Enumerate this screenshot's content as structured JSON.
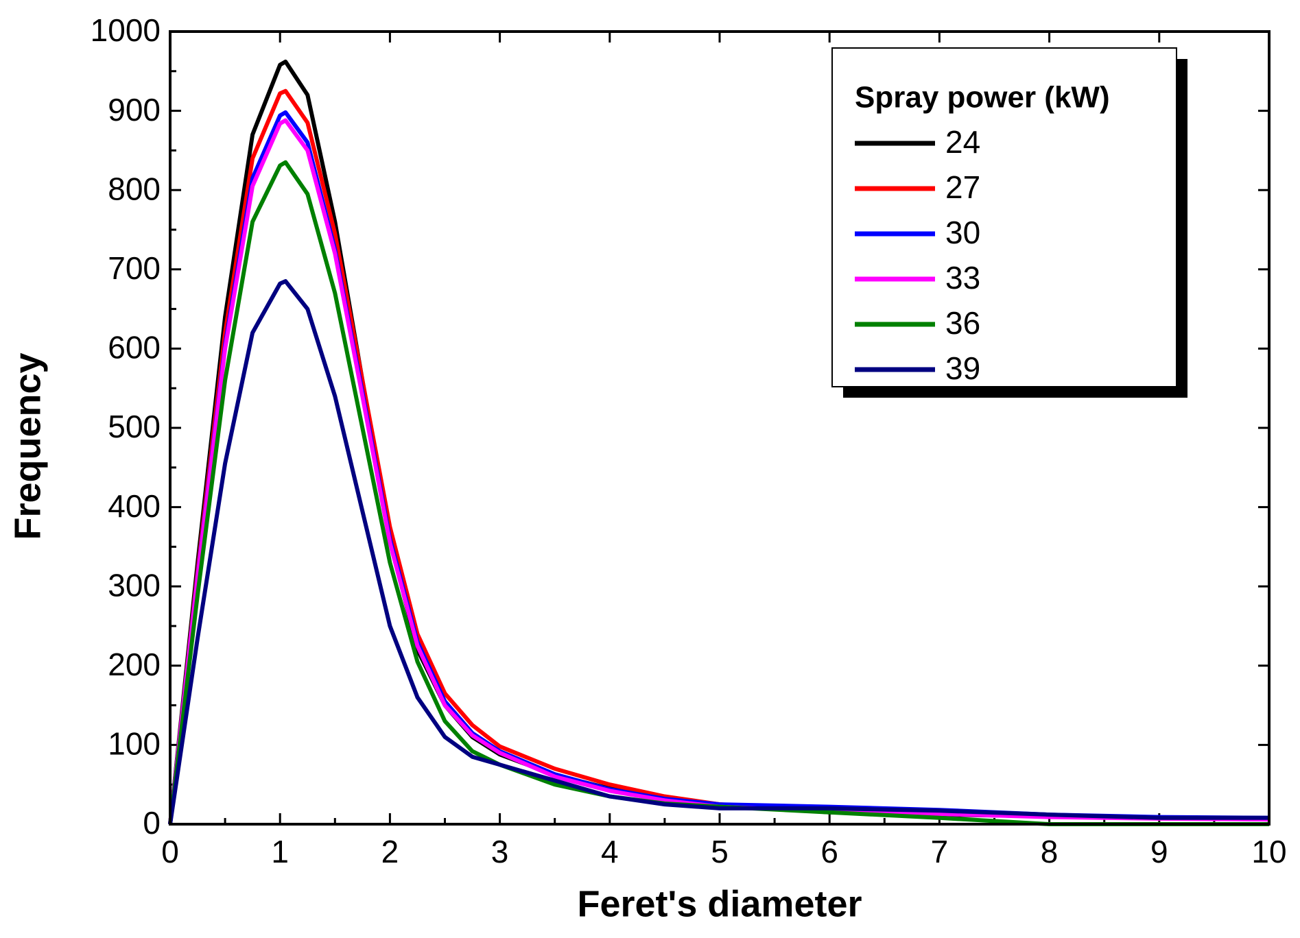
{
  "chart_data": {
    "type": "line",
    "xlabel": "Feret's diameter",
    "ylabel": "Frequency",
    "legend_title": "Spray power (kW)",
    "legend": "upper right",
    "x": [
      0,
      0.25,
      0.5,
      0.75,
      1,
      1.05,
      1.25,
      1.5,
      1.75,
      2,
      2.25,
      2.5,
      2.75,
      3,
      3.5,
      4,
      4.5,
      5,
      6,
      7,
      8,
      9,
      10
    ],
    "series": [
      {
        "name": "24",
        "color": "#000000",
        "values": [
          0,
          330,
          640,
          870,
          958,
          962,
          920,
          760,
          560,
          360,
          220,
          150,
          110,
          88,
          62,
          45,
          33,
          25,
          15,
          12,
          10,
          8,
          6
        ]
      },
      {
        "name": "27",
        "color": "#ff0000",
        "values": [
          0,
          320,
          620,
          840,
          922,
          925,
          885,
          745,
          560,
          375,
          240,
          165,
          125,
          98,
          70,
          50,
          35,
          25,
          18,
          14,
          10,
          8,
          7
        ]
      },
      {
        "name": "30",
        "color": "#0000ff",
        "values": [
          0,
          315,
          605,
          815,
          894,
          898,
          860,
          725,
          545,
          360,
          230,
          155,
          115,
          92,
          63,
          44,
          32,
          25,
          22,
          18,
          12,
          9,
          8
        ]
      },
      {
        "name": "33",
        "color": "#ff00ff",
        "values": [
          0,
          312,
          600,
          805,
          884,
          888,
          850,
          720,
          540,
          355,
          225,
          150,
          112,
          90,
          60,
          42,
          30,
          22,
          16,
          13,
          9,
          7,
          6
        ]
      },
      {
        "name": "36",
        "color": "#008000",
        "values": [
          0,
          290,
          560,
          760,
          831,
          835,
          795,
          670,
          500,
          330,
          205,
          130,
          92,
          75,
          50,
          35,
          26,
          22,
          15,
          8,
          0,
          0,
          0
        ]
      },
      {
        "name": "39",
        "color": "#000080",
        "values": [
          0,
          235,
          455,
          620,
          682,
          685,
          650,
          540,
          395,
          250,
          160,
          110,
          85,
          75,
          55,
          35,
          25,
          20,
          20,
          17,
          12,
          8,
          8
        ]
      }
    ],
    "xlim": [
      0,
      10
    ],
    "xticks": [
      0,
      1,
      2,
      3,
      4,
      5,
      6,
      7,
      8,
      9,
      10
    ],
    "ylim": [
      0,
      1000
    ],
    "yticks": [
      0,
      100,
      200,
      300,
      400,
      500,
      600,
      700,
      800,
      900,
      1000
    ]
  }
}
